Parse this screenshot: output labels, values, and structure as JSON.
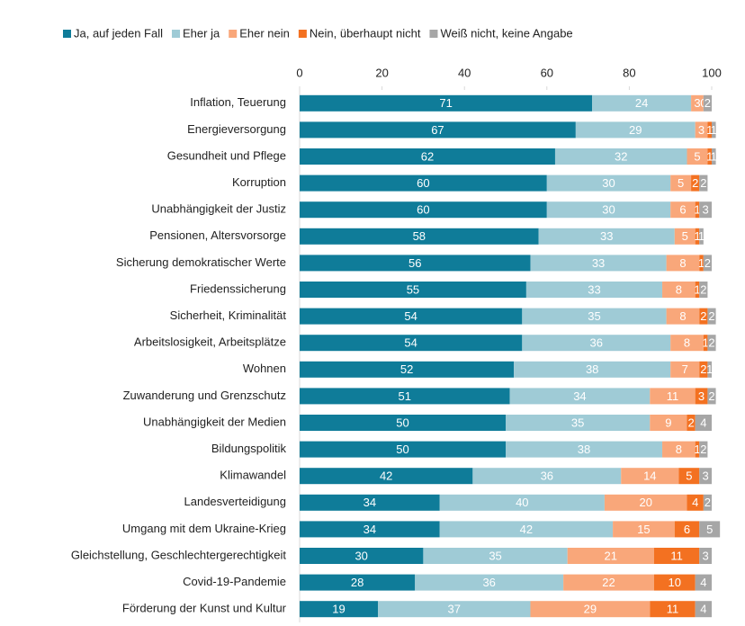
{
  "chart_data": {
    "type": "stacked_barh",
    "categories": [
      "Inflation, Teuerung",
      "Energieversorgung",
      "Gesundheit und Pflege",
      "Korruption",
      "Unabhängigkeit der Justiz",
      "Pensionen, Altersvorsorge",
      "Sicherung demokratischer Werte",
      "Friedenssicherung",
      "Sicherheit, Kriminalität",
      "Arbeitslosigkeit, Arbeitsplätze",
      "Wohnen",
      "Zuwanderung und Grenzschutz",
      "Unabhängigkeit der Medien",
      "Bildungspolitik",
      "Klimawandel",
      "Landesverteidigung",
      "Umgang mit dem Ukraine-Krieg",
      "Gleichstellung, Geschlechtergerechtigkeit",
      "Covid-19-Pandemie",
      "Förderung der Kunst und Kultur"
    ],
    "series": [
      {
        "name": "Ja, auf jeden Fall",
        "color": "#0f7c99",
        "values": [
          71,
          67,
          62,
          60,
          60,
          58,
          56,
          55,
          54,
          54,
          52,
          51,
          50,
          50,
          42,
          34,
          34,
          30,
          28,
          19
        ]
      },
      {
        "name": "Eher ja",
        "color": "#9fcbd6",
        "values": [
          24,
          29,
          32,
          30,
          30,
          33,
          33,
          33,
          35,
          36,
          38,
          34,
          35,
          38,
          36,
          40,
          42,
          35,
          36,
          37
        ]
      },
      {
        "name": "Eher nein",
        "color": "#f9a77a",
        "values": [
          3,
          3,
          5,
          5,
          6,
          5,
          8,
          8,
          8,
          8,
          7,
          11,
          9,
          8,
          14,
          20,
          15,
          21,
          22,
          29
        ]
      },
      {
        "name": "Nein, überhaupt nicht",
        "color": "#f37121",
        "values": [
          0,
          1,
          1,
          2,
          1,
          1,
          1,
          1,
          2,
          1,
          2,
          3,
          2,
          1,
          5,
          4,
          6,
          11,
          10,
          11
        ]
      },
      {
        "name": "Weiß nicht, keine Angabe",
        "color": "#a6a6a6",
        "values": [
          2,
          1,
          1,
          2,
          3,
          1,
          2,
          2,
          2,
          2,
          1,
          2,
          4,
          2,
          3,
          2,
          5,
          3,
          4,
          4
        ]
      }
    ],
    "xlim": [
      0,
      100
    ],
    "xticks": [
      0,
      20,
      40,
      60,
      80,
      100
    ],
    "legend": "top"
  }
}
